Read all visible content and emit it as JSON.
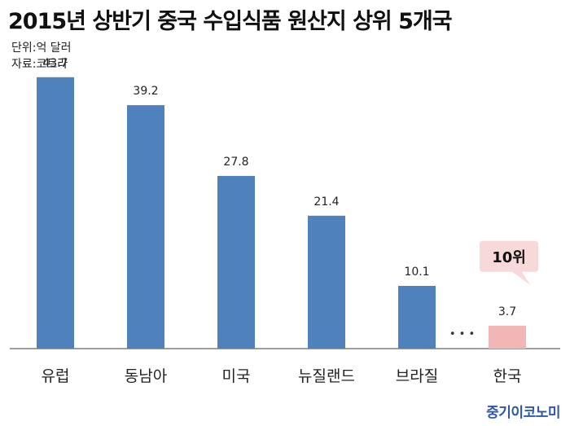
{
  "header": {
    "title": "2015년 상반기 중국 수입식품 원산지 상위 5개국",
    "unit": "단위:억 달러",
    "source": "자료:코트라"
  },
  "chart_data": {
    "type": "bar",
    "categories": [
      "유럽",
      "동남아",
      "미국",
      "뉴질랜드",
      "브라질",
      "한국"
    ],
    "values": [
      43.7,
      39.2,
      27.8,
      21.4,
      10.1,
      3.7
    ],
    "value_labels": [
      "43.7",
      "39.2",
      "27.8",
      "21.4",
      "10.1",
      "3.7"
    ],
    "ylim": [
      0,
      50
    ],
    "grid": false,
    "gap_marker": "• • •",
    "highlight": {
      "category": "한국",
      "callout": "10위"
    },
    "colors": {
      "bar": "#4f81bd",
      "highlight_bar": "#f2b6b6",
      "callout_bg": "#f7d9d9",
      "axis": "#7f7f7f"
    }
  },
  "footer": {
    "brand": "중기이코노미"
  }
}
